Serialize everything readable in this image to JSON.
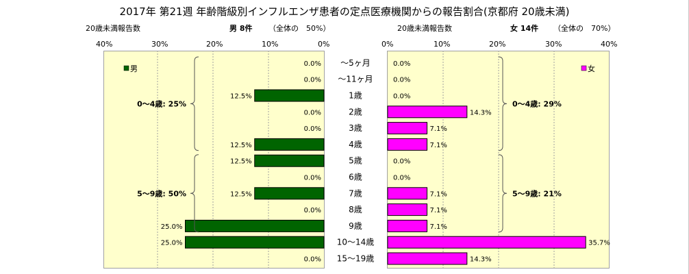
{
  "title": "2017年 第21週 年齢階級別インフルエンザ患者の定点医療機関からの報告割合(京都府 20歳未満)",
  "left_header": {
    "axis_title": "20歳未満報告数",
    "summary_main": "男 8件",
    "summary_note": "（全体の　50%）"
  },
  "right_header": {
    "axis_title": "20歳未満報告数",
    "summary_main": "女 14件",
    "summary_note": "（全体の　70%）"
  },
  "colors": {
    "male": "#006400",
    "female": "#ff00ff",
    "panel_bg": "#ffffcc"
  },
  "chart_data": {
    "type": "bar",
    "orientation": "horizontal",
    "categories": [
      "～5ヶ月",
      "～11ヶ月",
      "1歳",
      "2歳",
      "3歳",
      "4歳",
      "5歳",
      "6歳",
      "7歳",
      "8歳",
      "9歳",
      "10～14歳",
      "15～19歳"
    ],
    "series": [
      {
        "name": "男",
        "values": [
          0.0,
          0.0,
          12.5,
          0.0,
          0.0,
          12.5,
          12.5,
          0.0,
          12.5,
          0.0,
          25.0,
          25.0,
          0.0
        ]
      },
      {
        "name": "女",
        "values": [
          0.0,
          0.0,
          0.0,
          14.3,
          7.1,
          7.1,
          0.0,
          0.0,
          7.1,
          7.1,
          7.1,
          35.7,
          14.3
        ]
      }
    ],
    "value_suffix": "%",
    "left_ticks": [
      "40%",
      "30%",
      "20%",
      "10%",
      "0%"
    ],
    "right_ticks": [
      "0%",
      "10%",
      "20%",
      "30%",
      "40%"
    ],
    "xlim": [
      0,
      40
    ],
    "legend_placement": "top-left (男), top-right (女)",
    "grid": true,
    "groups": [
      {
        "side": "male",
        "label": "0～4歳: 25%",
        "from": 0,
        "to": 5
      },
      {
        "side": "male",
        "label": "5～9歳: 50%",
        "from": 6,
        "to": 10
      },
      {
        "side": "female",
        "label": "0～4歳: 29%",
        "from": 0,
        "to": 5
      },
      {
        "side": "female",
        "label": "5～9歳: 21%",
        "from": 6,
        "to": 10
      }
    ]
  }
}
